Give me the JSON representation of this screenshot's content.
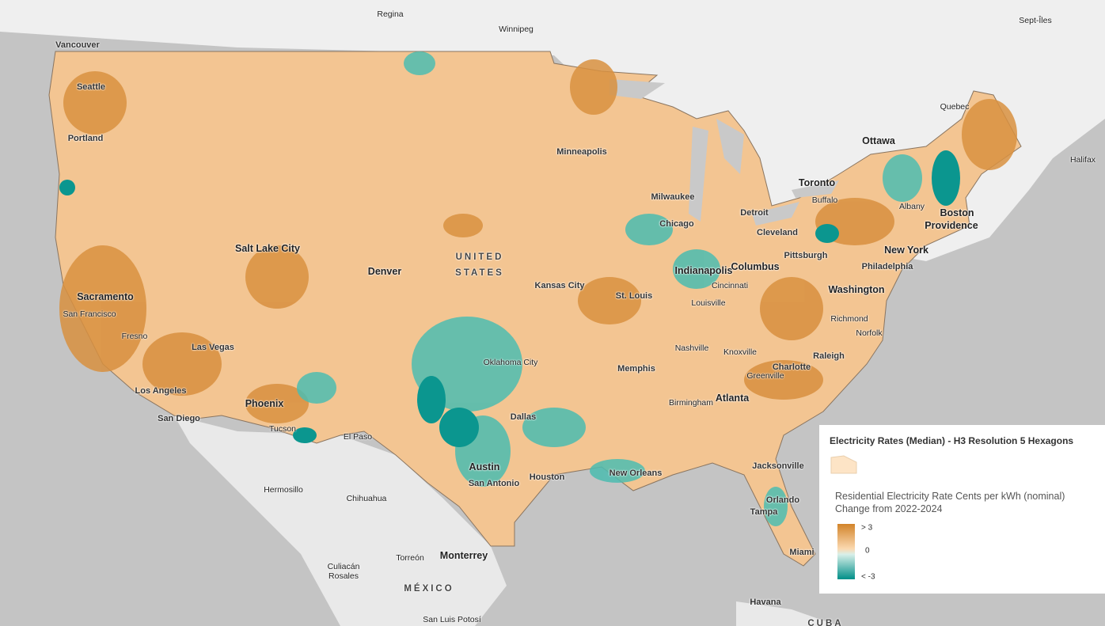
{
  "map": {
    "labels": [
      "Regina",
      "Winnipeg",
      "Vancouver",
      "Seattle",
      "Portland",
      "Sept-Îles",
      "Quebec",
      "Ottawa",
      "Halifax",
      "Toronto",
      "Minneapolis",
      "Milwaukee",
      "Detroit",
      "Buffalo",
      "Albany",
      "Boston",
      "Providence",
      "Chicago",
      "Cleveland",
      "Pittsburgh",
      "New York",
      "Philadelphia",
      "Salt Lake City",
      "Denver",
      "UNITED STATES",
      "Kansas City",
      "Indianapolis",
      "Columbus",
      "Cincinnati",
      "Louisville",
      "St. Louis",
      "Washington",
      "Richmond",
      "Norfolk",
      "Sacramento",
      "San Francisco",
      "Fresno",
      "Las Vegas",
      "Los Angeles",
      "San Diego",
      "Phoenix",
      "Tucson",
      "El Paso",
      "Oklahoma City",
      "Dallas",
      "Memphis",
      "Nashville",
      "Knoxville",
      "Raleigh",
      "Charlotte",
      "Greenville",
      "Atlanta",
      "Birmingham",
      "Austin",
      "San Antonio",
      "Houston",
      "New Orleans",
      "Jacksonville",
      "Orlando",
      "Tampa",
      "Miami",
      "Hermosillo",
      "Chihuahua",
      "Torreón",
      "Monterrey",
      "Culiacán Rosales",
      "MÉXICO",
      "San Luis Potosí",
      "Havana",
      "CUBA"
    ]
  },
  "legend": {
    "title": "Electricity Rates (Median) - H3 Resolution 5 Hexagons",
    "subtitle": "Residential Electricity Rate Cents per kWh (nominal) Change from 2022-2024",
    "ticks": [
      "> 3",
      "0",
      "< -3"
    ]
  }
}
